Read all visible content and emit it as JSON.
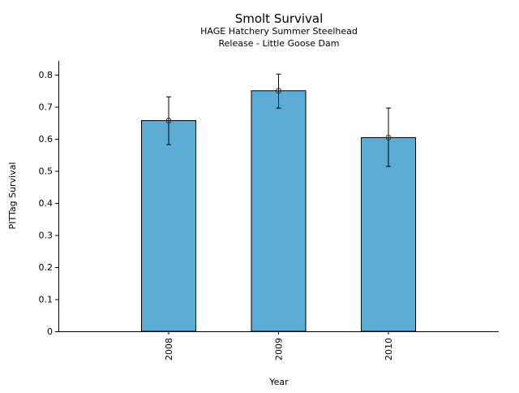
{
  "chart_data": {
    "type": "bar",
    "title": "Smolt Survival",
    "subtitle_lines": [
      "HAGE Hatchery Summer Steelhead",
      "Release - Little Goose Dam"
    ],
    "xlabel": "Year",
    "ylabel": "PITTag Survival",
    "categories": [
      "2008",
      "2009",
      "2010"
    ],
    "values": [
      0.657,
      0.75,
      0.604
    ],
    "error_low": [
      0.582,
      0.696,
      0.514
    ],
    "error_high": [
      0.731,
      0.802,
      0.696
    ],
    "ylim": [
      0,
      0.84
    ],
    "yticks": [
      "0",
      "0.1",
      "0.2",
      "0.3",
      "0.4",
      "0.5",
      "0.6",
      "0.7",
      "0.8"
    ],
    "bar_color": "#5bacd5",
    "grid": false,
    "legend": "none"
  }
}
